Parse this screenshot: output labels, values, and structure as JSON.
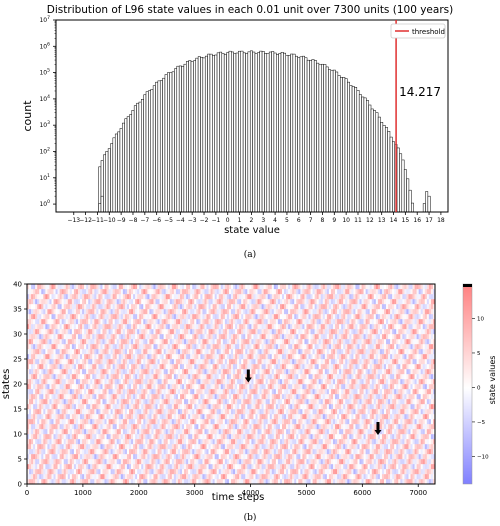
{
  "chart_data": [
    {
      "type": "bar",
      "title": "Distribution of L96 state values in each 0.01 unit over 7300 units (100 years)",
      "xlabel": "state value",
      "ylabel": "count",
      "caption": "(a)",
      "xlim": [
        -14.5,
        18.6
      ],
      "x_ticks": [
        "-13",
        "-12",
        "-11",
        "-10",
        "-9",
        "-8",
        "-7",
        "-6",
        "-5",
        "-4",
        "-3",
        "-2",
        "-1",
        "0",
        "1",
        "2",
        "3",
        "4",
        "5",
        "6",
        "7",
        "8",
        "9",
        "10",
        "11",
        "12",
        "13",
        "14",
        "15",
        "16",
        "17",
        "18"
      ],
      "y_scale": "log",
      "ylim": [
        0.5,
        10000000
      ],
      "y_ticks": [
        "10^0",
        "10^1",
        "10^2",
        "10^3",
        "10^4",
        "10^5",
        "10^6",
        "10^7"
      ],
      "y_tick_values": [
        1,
        10,
        100,
        1000,
        10000,
        100000,
        1000000,
        10000000
      ],
      "bin_width": 0.01,
      "shape": {
        "range": [
          -10.9,
          17.1
        ],
        "peak_x": 1.5,
        "peak_count": 600000,
        "low_tail_counts": [
          {
            "x": -10.8,
            "count": 1
          },
          {
            "x": -10.6,
            "count": 2
          }
        ],
        "high_tail_counts": [
          {
            "x": 16.6,
            "count": 1
          },
          {
            "x": 16.8,
            "count": 3
          },
          {
            "x": 17.0,
            "count": 2
          }
        ]
      },
      "threshold": {
        "value": 14.217,
        "label": "14.217",
        "legend": "threshold",
        "color": "#e03030"
      },
      "bar_color": "#ffffff",
      "bar_edge_color": "#000000"
    },
    {
      "type": "heatmap",
      "xlabel": "time steps",
      "ylabel": "states",
      "caption": "(b)",
      "xlim": [
        0,
        7300
      ],
      "x_ticks": [
        0,
        1000,
        2000,
        3000,
        4000,
        5000,
        6000,
        7000
      ],
      "ylim": [
        0,
        40
      ],
      "y_ticks": [
        0,
        5,
        10,
        15,
        20,
        25,
        30,
        35,
        40
      ],
      "colorbar": {
        "label": "state values",
        "ticks": [
          10,
          5,
          0,
          -5,
          -10
        ],
        "range": [
          -14,
          15
        ],
        "colors": {
          "low": "#8080ff",
          "mid": "#ffffff",
          "high": "#ff8080"
        }
      },
      "markers": [
        {
          "time": 3960,
          "state": 21.5
        },
        {
          "time": 6280,
          "state": 11
        }
      ],
      "grid_cols": 200,
      "grid_rows": 40
    }
  ]
}
